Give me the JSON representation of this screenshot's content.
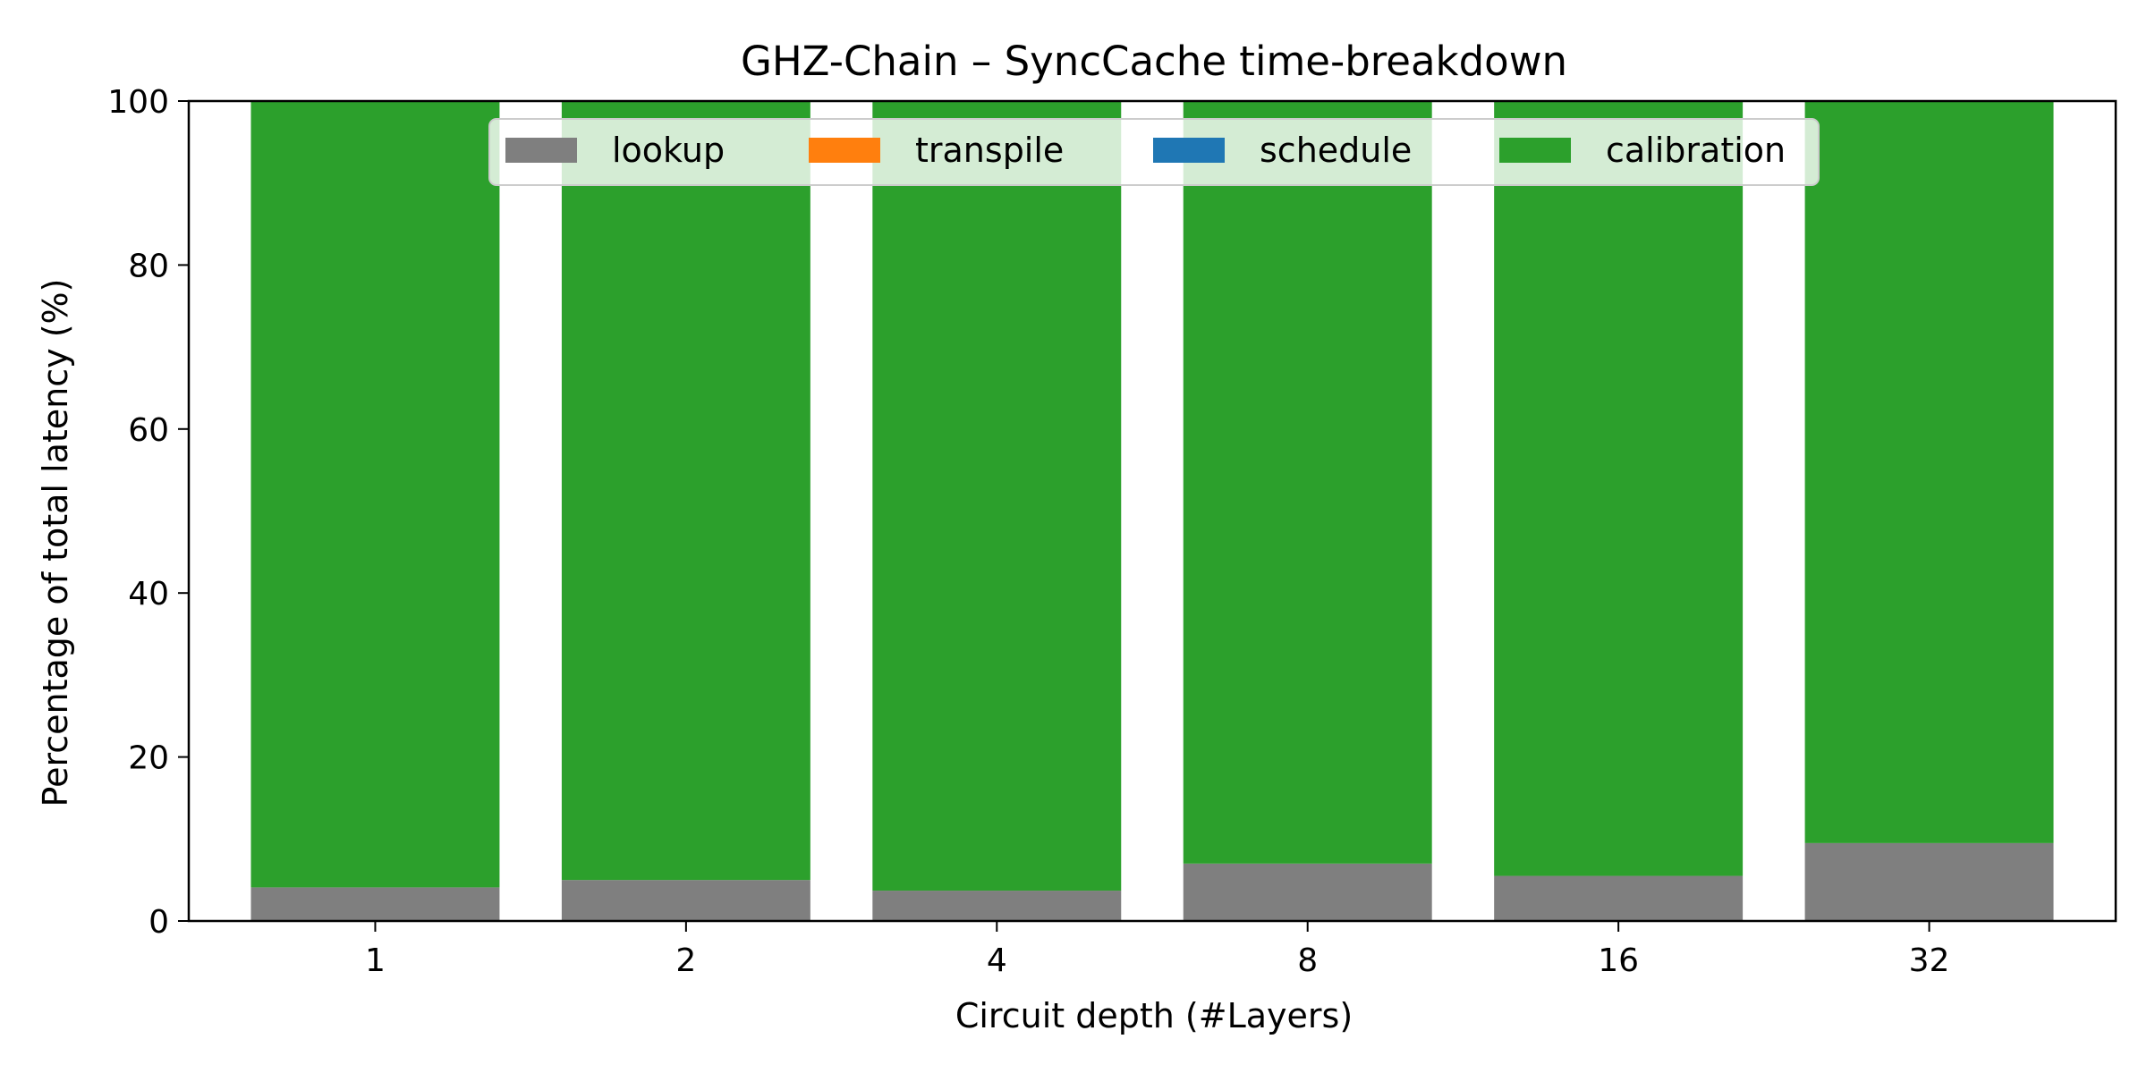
{
  "chart_data": {
    "type": "bar",
    "stacked": true,
    "percent_stacked": true,
    "title": "GHZ-Chain – SyncCache time-breakdown",
    "xlabel": "Circuit depth (#Layers)",
    "ylabel": "Percentage of total latency (%)",
    "categories": [
      "1",
      "2",
      "4",
      "8",
      "16",
      "32"
    ],
    "ylim": [
      0,
      100
    ],
    "yticks": [
      0,
      20,
      40,
      60,
      80,
      100
    ],
    "grid": false,
    "legend": {
      "placement": "upper-center",
      "ncols": 4
    },
    "series": [
      {
        "name": "lookup",
        "color": "#7f7f7f",
        "values": [
          4.1,
          5.0,
          3.7,
          7.0,
          5.5,
          9.5
        ]
      },
      {
        "name": "transpile",
        "color": "#ff7f0e",
        "values": [
          0,
          0,
          0,
          0,
          0,
          0
        ]
      },
      {
        "name": "schedule",
        "color": "#1f77b4",
        "values": [
          0,
          0,
          0,
          0,
          0,
          0
        ]
      },
      {
        "name": "calibration",
        "color": "#2ca02c",
        "values": [
          95.9,
          95.0,
          96.3,
          93.0,
          94.5,
          90.5
        ]
      }
    ]
  }
}
